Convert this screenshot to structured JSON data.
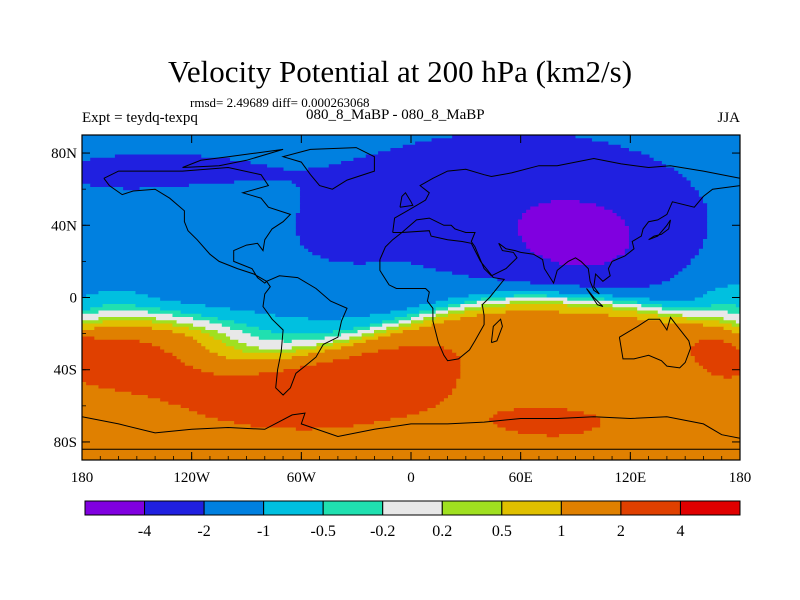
{
  "chart_data": {
    "type": "heatmap",
    "title": "Velocity Potential at 200 hPa (km2/s)",
    "stats": {
      "rmsd": "2.49689",
      "diff": "0.000263068"
    },
    "stats_text": "rmsd= 2.49689 diff= 0.000263068",
    "experiment_label": "Expt = teydq-texpq",
    "case_label": "080_8_MaBP - 080_8_MaBP",
    "season": "JJA",
    "x_ticks": [
      {
        "value": -180,
        "label": "180"
      },
      {
        "value": -120,
        "label": "120W"
      },
      {
        "value": -60,
        "label": "60W"
      },
      {
        "value": 0,
        "label": "0"
      },
      {
        "value": 60,
        "label": "60E"
      },
      {
        "value": 120,
        "label": "120E"
      },
      {
        "value": 180,
        "label": "180"
      }
    ],
    "y_ticks": [
      {
        "value": 80,
        "label": "80N"
      },
      {
        "value": 40,
        "label": "40N"
      },
      {
        "value": 0,
        "label": "0"
      },
      {
        "value": -40,
        "label": "40S"
      },
      {
        "value": -80,
        "label": "80S"
      }
    ],
    "xlim": [
      -180,
      180
    ],
    "ylim": [
      -90,
      90
    ],
    "contour_levels": [
      -4,
      -2,
      -1,
      -0.5,
      -0.2,
      0.2,
      0.5,
      1,
      2,
      4
    ],
    "level_labels": [
      "-4",
      "-2",
      "-1",
      "-0.5",
      "-0.2",
      "0.2",
      "0.5",
      "1",
      "2",
      "4"
    ],
    "colors": [
      "#8000e0",
      "#2020e0",
      "#0080e0",
      "#00c0e0",
      "#20e0b0",
      "#e8e8e8",
      "#a0e020",
      "#e0c000",
      "#e08000",
      "#e04000",
      "#e00000"
    ],
    "field_centers": [
      {
        "lon": 95,
        "lat": 30,
        "value": -4.6
      },
      {
        "lon": 55,
        "lat": 50,
        "value": -2.8
      },
      {
        "lon": -30,
        "lat": 40,
        "value": -2.2
      },
      {
        "lon": -145,
        "lat": -25,
        "value": 4.6
      },
      {
        "lon": 170,
        "lat": -15,
        "value": 2.4
      },
      {
        "lon": -20,
        "lat": -40,
        "value": 2.0
      }
    ]
  }
}
